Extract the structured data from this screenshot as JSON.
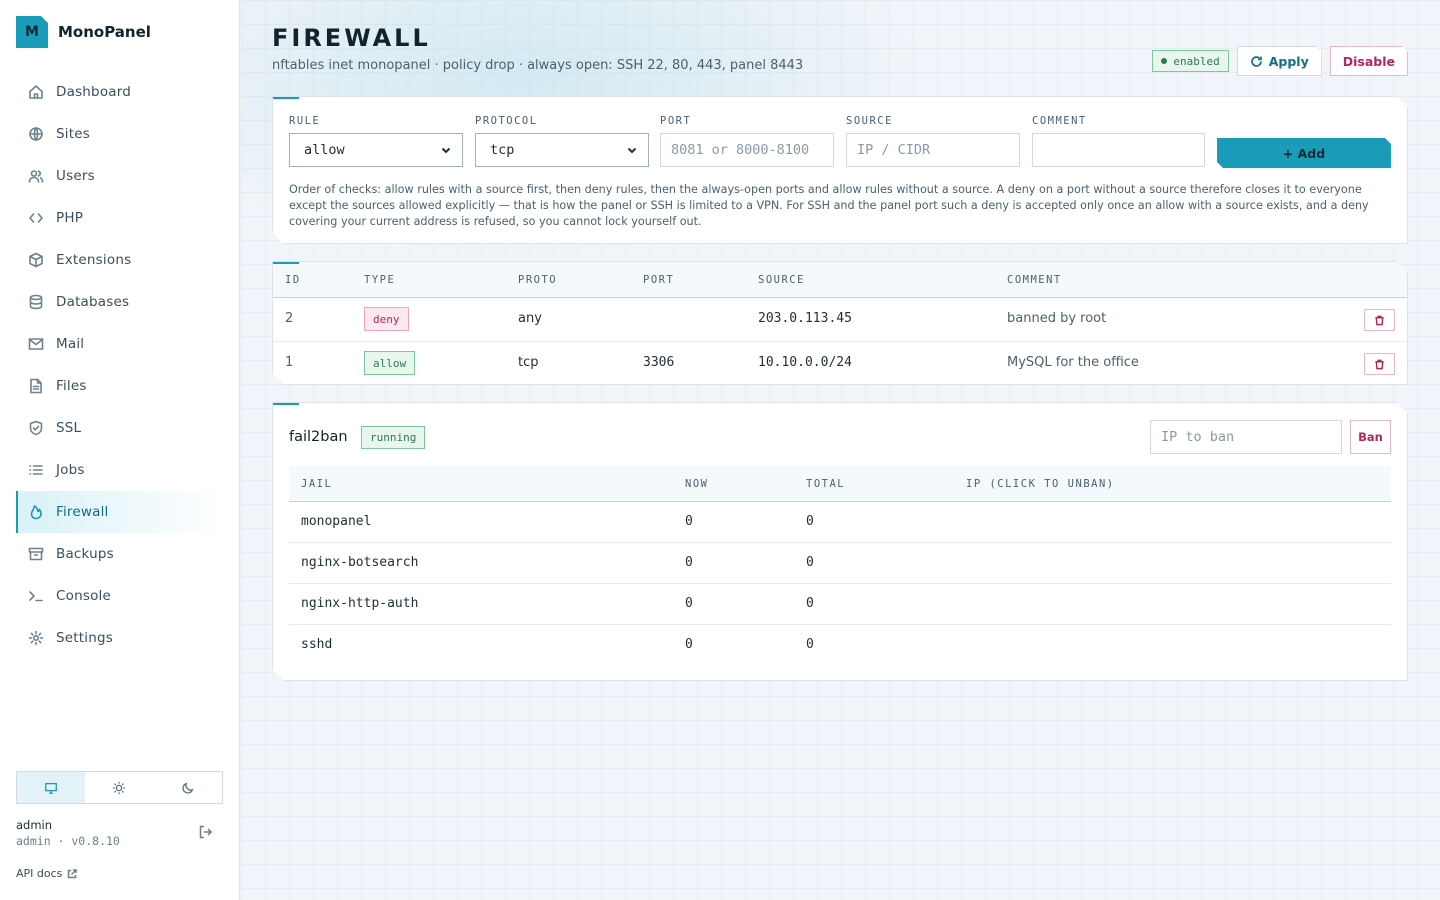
{
  "app": {
    "logo_letter": "M",
    "name": "MonoPanel"
  },
  "sidebar": {
    "items": [
      {
        "label": "Dashboard",
        "icon": "home-icon"
      },
      {
        "label": "Sites",
        "icon": "globe-icon"
      },
      {
        "label": "Users",
        "icon": "users-icon"
      },
      {
        "label": "PHP",
        "icon": "code-icon"
      },
      {
        "label": "Extensions",
        "icon": "package-icon"
      },
      {
        "label": "Databases",
        "icon": "database-icon"
      },
      {
        "label": "Mail",
        "icon": "mail-icon"
      },
      {
        "label": "Files",
        "icon": "file-icon"
      },
      {
        "label": "SSL",
        "icon": "shield-icon"
      },
      {
        "label": "Jobs",
        "icon": "list-icon"
      },
      {
        "label": "Firewall",
        "icon": "flame-icon",
        "active": true
      },
      {
        "label": "Backups",
        "icon": "archive-icon"
      },
      {
        "label": "Console",
        "icon": "terminal-icon"
      },
      {
        "label": "Settings",
        "icon": "gear-icon"
      }
    ],
    "theme_options": [
      "monitor-icon",
      "sun-icon",
      "moon-icon"
    ],
    "user_name": "admin",
    "user_meta": "admin · v0.8.10",
    "api_docs": "API docs"
  },
  "header": {
    "title": "FIREWALL",
    "subtitle": "nftables inet monopanel · policy drop · always open: SSH 22, 80, 443, panel 8443",
    "status_badge": "enabled",
    "apply_label": "Apply",
    "disable_label": "Disable"
  },
  "form": {
    "rule_label": "RULE",
    "rule_value": "allow",
    "protocol_label": "PROTOCOL",
    "protocol_value": "tcp",
    "port_label": "PORT",
    "port_placeholder": "8081 or 8000-8100",
    "source_label": "SOURCE",
    "source_placeholder": "IP / CIDR",
    "comment_label": "COMMENT",
    "comment_value": "",
    "add_label": "+ Add",
    "help": "Order of checks: allow rules with a source first, then deny rules, then the always-open ports and allow rules without a source. A deny on a port without a source therefore closes it to everyone except the sources allowed explicitly — that is how the panel or SSH is limited to a VPN. For SSH and the panel port such a deny is accepted only once an allow with a source exists, and a deny covering your current address is refused, so you cannot lock yourself out."
  },
  "rules": {
    "columns": [
      "ID",
      "TYPE",
      "PROTO",
      "PORT",
      "SOURCE",
      "COMMENT"
    ],
    "rows": [
      {
        "id": "2",
        "type": "deny",
        "proto": "any",
        "port": "",
        "source": "203.0.113.45",
        "comment": "banned by root"
      },
      {
        "id": "1",
        "type": "allow",
        "proto": "tcp",
        "port": "3306",
        "source": "10.10.0.0/24",
        "comment": "MySQL for the office"
      }
    ]
  },
  "fail2ban": {
    "title": "fail2ban",
    "status": "running",
    "ban_placeholder": "IP to ban",
    "ban_label": "Ban",
    "columns": [
      "JAIL",
      "NOW",
      "TOTAL",
      "IP (CLICK TO UNBAN)"
    ],
    "rows": [
      {
        "jail": "monopanel",
        "now": "0",
        "total": "0"
      },
      {
        "jail": "nginx-botsearch",
        "now": "0",
        "total": "0"
      },
      {
        "jail": "nginx-http-auth",
        "now": "0",
        "total": "0"
      },
      {
        "jail": "sshd",
        "now": "0",
        "total": "0"
      }
    ]
  },
  "colors": {
    "accent": "#1a9bb8",
    "danger": "#b0285e",
    "success": "#2c7a50"
  }
}
